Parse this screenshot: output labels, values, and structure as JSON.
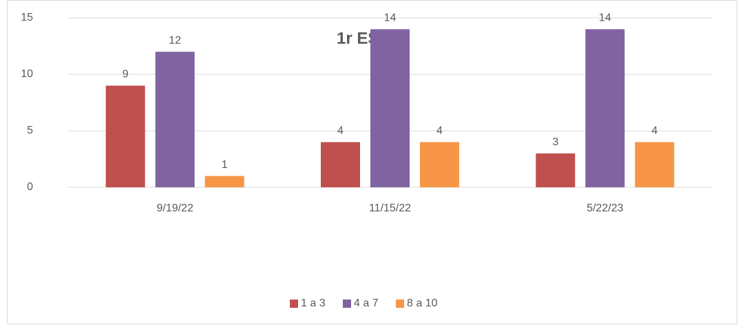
{
  "chart_data": {
    "type": "bar",
    "title": "1r ESO B",
    "categories": [
      "9/19/22",
      "11/15/22",
      "5/22/23"
    ],
    "series": [
      {
        "name": "1 a 3",
        "color": "#c0504d",
        "values": [
          9,
          4,
          3
        ]
      },
      {
        "name": "4 a 7",
        "color": "#8064a2",
        "values": [
          12,
          14,
          14
        ]
      },
      {
        "name": "8 a 10",
        "color": "#f79646",
        "values": [
          1,
          4,
          4
        ]
      }
    ],
    "ylim": [
      0,
      15
    ],
    "yticks": [
      0,
      5,
      10,
      15
    ],
    "grid": true,
    "legend": "bottom"
  }
}
